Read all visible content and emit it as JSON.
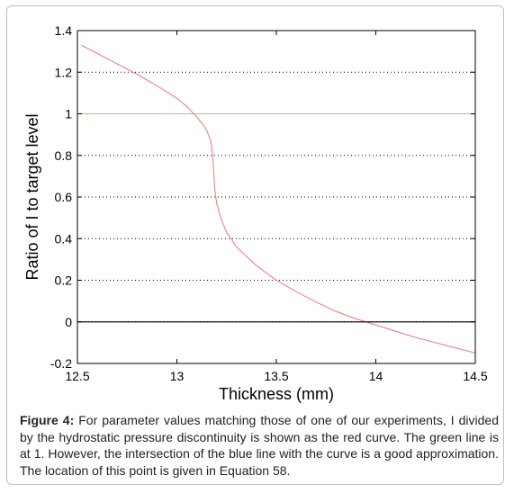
{
  "chart_data": {
    "type": "line",
    "title": "",
    "xlabel": "Thickness (mm)",
    "ylabel": "Ratio of I to target level",
    "xlim": [
      12.5,
      14.5
    ],
    "ylim": [
      -0.2,
      1.4
    ],
    "xticks": [
      12.5,
      13,
      13.5,
      14,
      14.5
    ],
    "xtick_labels": [
      "12.5",
      "13",
      "13.5",
      "14",
      "14.5"
    ],
    "yticks": [
      -0.2,
      0,
      0.2,
      0.4,
      0.6,
      0.8,
      1,
      1.2,
      1.4
    ],
    "ytick_labels": [
      "-0.2",
      "0",
      "0.2",
      "0.4",
      "0.6",
      "0.8",
      "1",
      "1.2",
      "1.4"
    ],
    "grid": "dotted",
    "series": [
      {
        "color": "#e8857f",
        "x": [
          12.52,
          12.6,
          12.7,
          12.8,
          12.9,
          13.0,
          13.05,
          13.1,
          13.13,
          13.15,
          13.17,
          13.18,
          13.185,
          13.19,
          13.2,
          13.22,
          13.25,
          13.3,
          13.4,
          13.5,
          13.6,
          13.7,
          13.8,
          13.9,
          14.0,
          14.1,
          14.2,
          14.3,
          14.4,
          14.5
        ],
        "y": [
          1.33,
          1.29,
          1.24,
          1.19,
          1.135,
          1.075,
          1.035,
          0.985,
          0.95,
          0.92,
          0.87,
          0.8,
          0.72,
          0.64,
          0.57,
          0.5,
          0.43,
          0.36,
          0.27,
          0.2,
          0.145,
          0.095,
          0.05,
          0.015,
          -0.015,
          -0.045,
          -0.075,
          -0.1,
          -0.125,
          -0.15
        ]
      },
      {
        "color": "#8ed27a",
        "x": [
          12.5,
          14.5
        ],
        "y": [
          1,
          1
        ]
      },
      {
        "color": "#000000",
        "x": [
          12.5,
          14.5
        ],
        "y": [
          0,
          0
        ]
      }
    ]
  },
  "caption": {
    "label": "Figure 4:",
    "text": " For parameter values matching those of one of our experiments, I divided by the hydrostatic pressure discontinuity is shown as the red curve. The green line is at 1. However, the intersection of the blue line with the curve is a good approximation. The location of this point is given in Equation 58."
  }
}
